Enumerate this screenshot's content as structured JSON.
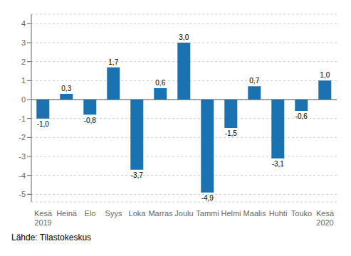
{
  "chart_data": {
    "type": "bar",
    "categories": [
      "Kesä\n2019",
      "Heinä",
      "Elo",
      "Syys",
      "Loka",
      "Marras",
      "Joulu",
      "Tammi",
      "Helmi",
      "Maalis",
      "Huhti",
      "Touko",
      "Kesä\n2020"
    ],
    "values": [
      -1.0,
      0.3,
      -0.8,
      1.7,
      -3.7,
      0.6,
      3.0,
      -4.9,
      -1.5,
      0.7,
      -3.1,
      -0.6,
      1.0
    ],
    "value_labels": [
      "-1,0",
      "0,3",
      "-0,8",
      "1,7",
      "-3,7",
      "0,6",
      "3,0",
      "-4,9",
      "-1,5",
      "0,7",
      "-3,1",
      "-0,6",
      "1,0"
    ],
    "color": "#1a72b0",
    "ylim": [
      -5.4,
      4.5
    ],
    "yticks": [
      -5,
      -4,
      -3,
      -2,
      -1,
      0,
      1,
      2,
      3,
      4
    ],
    "grid": true,
    "data_labels": true,
    "annotations": [
      "Lähde: Tilastokeskus"
    ]
  }
}
